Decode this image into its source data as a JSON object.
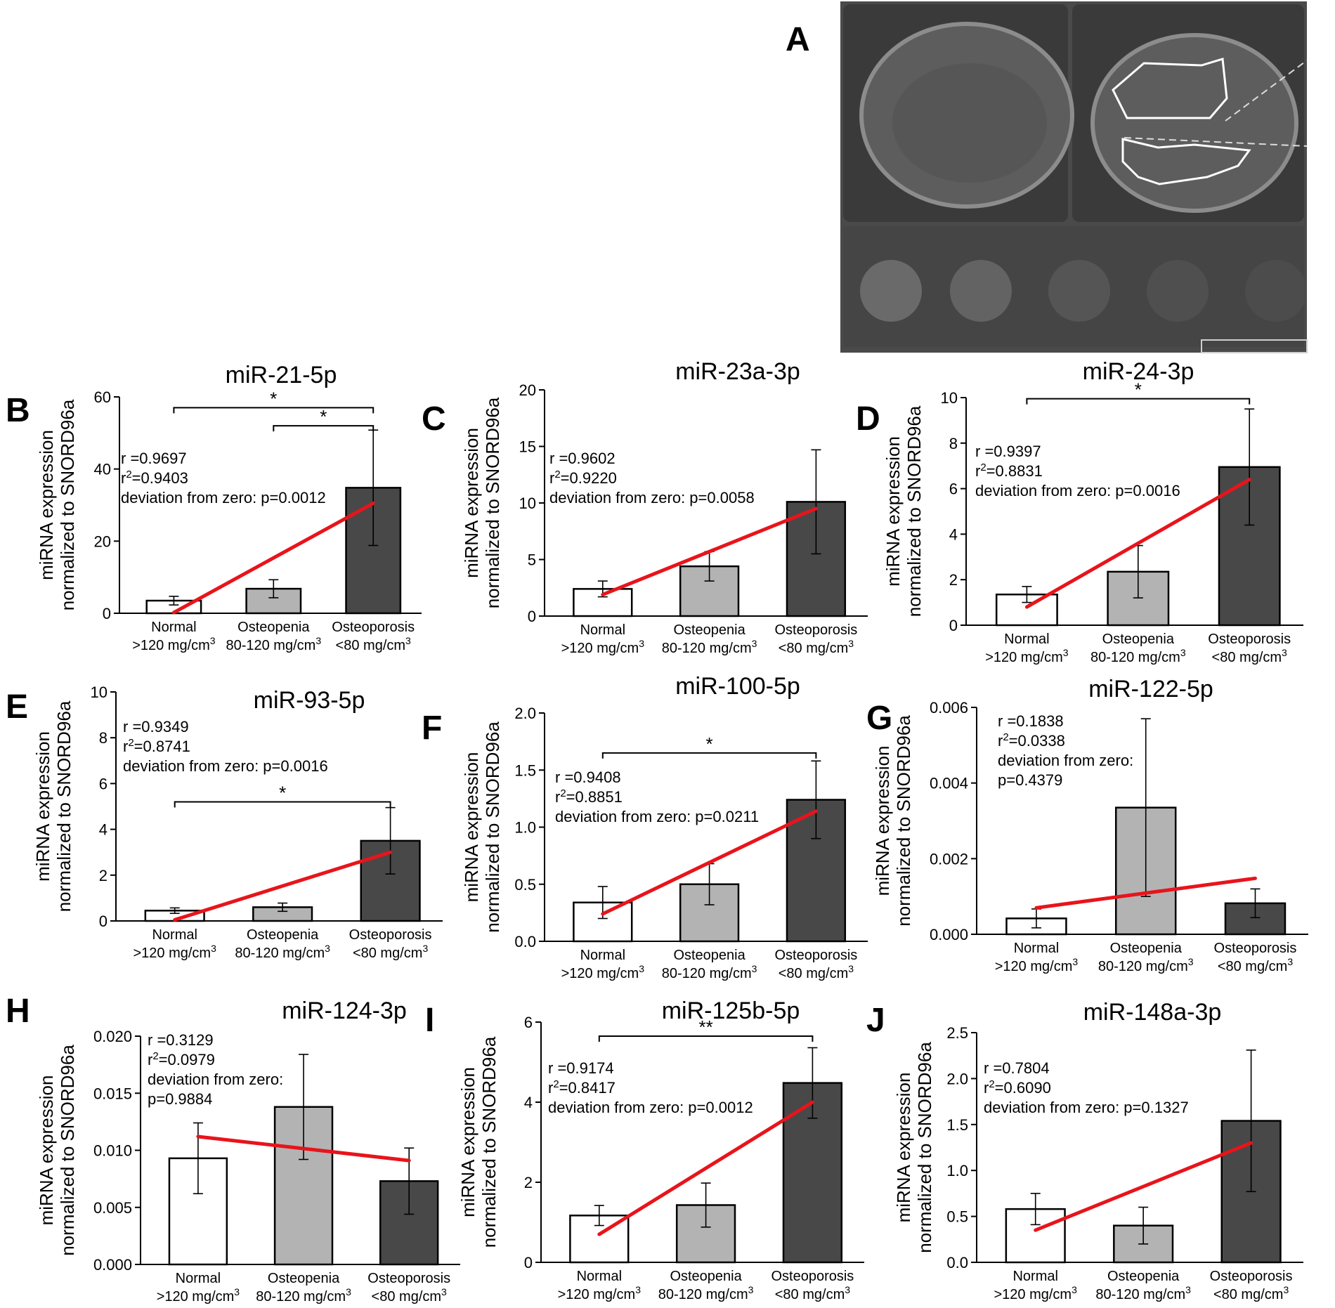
{
  "figure": {
    "panelA": {
      "letter": "A"
    },
    "scan_colors": {
      "background": "#4a4a4a",
      "slice": "#3d3d3d",
      "bone": "#888888",
      "roi": "#ffffff"
    }
  },
  "categories": [
    {
      "name": "Normal",
      "range": ">120 mg/cm",
      "sup": "3"
    },
    {
      "name": "Osteopenia",
      "range": "80-120 mg/cm",
      "sup": "3"
    },
    {
      "name": "Osteoporosis",
      "range": "<80 mg/cm",
      "sup": "3"
    }
  ],
  "ylabel_lines": [
    "miRNA expression",
    "normalized to SNORD96a"
  ],
  "colors": {
    "normal": "#ffffff",
    "osteopenia": "#b3b3b3",
    "osteoporosis": "#484848",
    "trend": "#e8141b",
    "axis": "#000000"
  },
  "chart_data": [
    {
      "letter": "B",
      "type": "bar",
      "title": "miR-21-5p",
      "ylim": [
        0,
        60
      ],
      "yticks": [
        0,
        20,
        40,
        60
      ],
      "values": [
        3.5,
        6.8,
        34.8
      ],
      "err": [
        1.2,
        2.5,
        16
      ],
      "trend": [
        0.2,
        30.5
      ],
      "stats": [
        "r =0.9697",
        "r2=0.9403",
        "deviation from zero: p=0.0012"
      ],
      "sig": [
        {
          "from": 0,
          "to": 2,
          "label": "*",
          "y": 57
        },
        {
          "from": 1,
          "to": 2,
          "label": "*",
          "y": 52
        }
      ]
    },
    {
      "letter": "C",
      "type": "bar",
      "title": "miR-23a-3p",
      "ylim": [
        0,
        20
      ],
      "yticks": [
        0,
        5,
        10,
        15,
        20
      ],
      "values": [
        2.4,
        4.4,
        10.1
      ],
      "err": [
        0.7,
        1.3,
        4.6
      ],
      "trend": [
        1.9,
        9.5
      ],
      "stats": [
        "r =0.9602",
        "r2=0.9220",
        "deviation from zero: p=0.0058"
      ],
      "sig": []
    },
    {
      "letter": "D",
      "type": "bar",
      "title": "miR-24-3p",
      "ylim": [
        0,
        10
      ],
      "yticks": [
        0,
        2,
        4,
        6,
        8,
        10
      ],
      "values": [
        1.35,
        2.35,
        6.95
      ],
      "err": [
        0.35,
        1.15,
        2.55
      ],
      "trend": [
        0.8,
        6.4
      ],
      "stats": [
        "r =0.9397",
        "r2=0.8831",
        "deviation from zero: p=0.0016"
      ],
      "sig": [
        {
          "from": 0,
          "to": 2,
          "label": "*",
          "y": 9.95
        }
      ]
    },
    {
      "letter": "E",
      "type": "bar",
      "title": "miR-93-5p",
      "ylim": [
        0,
        10
      ],
      "yticks": [
        0,
        2,
        4,
        6,
        8,
        10
      ],
      "values": [
        0.45,
        0.6,
        3.5
      ],
      "err": [
        0.12,
        0.18,
        1.45
      ],
      "trend": [
        0.05,
        3.0
      ],
      "stats": [
        "r =0.9349",
        "r2=0.8741",
        "deviation from zero: p=0.0016"
      ],
      "sig": [
        {
          "from": 0,
          "to": 2,
          "label": "*",
          "y": 5.2
        }
      ]
    },
    {
      "letter": "F",
      "type": "bar",
      "title": "miR-100-5p",
      "ylim": [
        0,
        2.0
      ],
      "yticks": [
        0.0,
        0.5,
        1.0,
        1.5,
        2.0
      ],
      "values": [
        0.34,
        0.5,
        1.24
      ],
      "err": [
        0.14,
        0.18,
        0.34
      ],
      "trend": [
        0.24,
        1.14
      ],
      "stats": [
        "r =0.9408",
        "r2=0.8851",
        "deviation from zero: p=0.0211"
      ],
      "sig": [
        {
          "from": 0,
          "to": 2,
          "label": "*",
          "y": 1.65
        }
      ]
    },
    {
      "letter": "G",
      "type": "bar",
      "title": "miR-122-5p",
      "ylim": [
        0,
        0.006
      ],
      "yticks": [
        0.0,
        0.002,
        0.004,
        0.006
      ],
      "values": [
        0.00042,
        0.00335,
        0.00082
      ],
      "err": [
        0.00025,
        0.00235,
        0.00038
      ],
      "trend": [
        0.0007,
        0.00148
      ],
      "stats": [
        "r =0.1838",
        "r2=0.0338",
        "deviation from zero:",
        "p=0.4379"
      ],
      "sig": []
    },
    {
      "letter": "H",
      "type": "bar",
      "title": "miR-124-3p",
      "ylim": [
        0,
        0.02
      ],
      "yticks": [
        0.0,
        0.005,
        0.01,
        0.015,
        0.02
      ],
      "values": [
        0.0093,
        0.0138,
        0.0073
      ],
      "err": [
        0.0031,
        0.0046,
        0.0029
      ],
      "trend": [
        0.0112,
        0.0091
      ],
      "stats": [
        "r =0.3129",
        "r2=0.0979",
        "deviation from zero:",
        "p=0.9884"
      ],
      "sig": []
    },
    {
      "letter": "I",
      "type": "bar",
      "title": "miR-125b-5p",
      "ylim": [
        0,
        6
      ],
      "yticks": [
        0,
        2,
        4,
        6
      ],
      "values": [
        1.17,
        1.43,
        4.48
      ],
      "err": [
        0.25,
        0.55,
        0.88
      ],
      "trend": [
        0.7,
        4.0
      ],
      "stats": [
        "r =0.9174",
        "r2=0.8417",
        "deviation from zero: p=0.0012"
      ],
      "sig": [
        {
          "from": 0,
          "to": 2,
          "label": "**",
          "y": 5.65
        }
      ]
    },
    {
      "letter": "J",
      "type": "bar",
      "title": "miR-148a-3p",
      "ylim": [
        0,
        2.5
      ],
      "yticks": [
        0.0,
        0.5,
        1.0,
        1.5,
        2.0,
        2.5
      ],
      "values": [
        0.58,
        0.4,
        1.54
      ],
      "err": [
        0.17,
        0.2,
        0.77
      ],
      "trend": [
        0.35,
        1.3
      ],
      "stats": [
        "r =0.7804",
        "r2=0.6090",
        "deviation from zero: p=0.1327"
      ],
      "sig": []
    }
  ]
}
